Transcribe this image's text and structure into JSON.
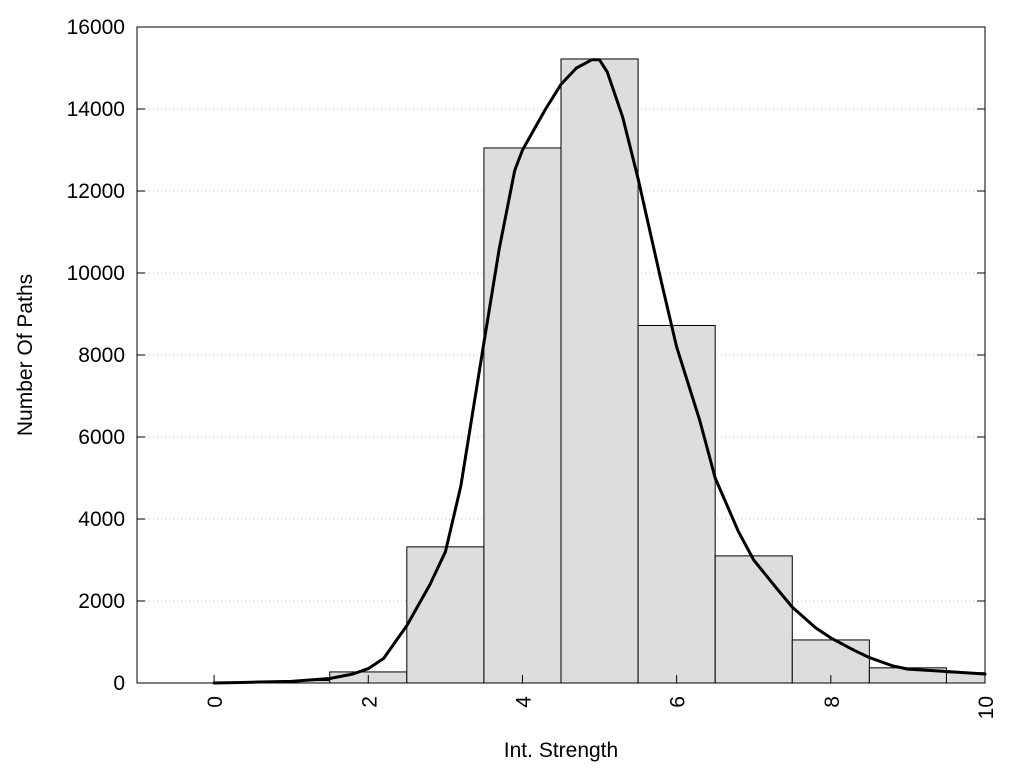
{
  "chart_data": {
    "type": "bar",
    "title": "",
    "xlabel": "Int. Strength",
    "ylabel": "Number Of Paths",
    "xlim": [
      -1,
      10
    ],
    "ylim": [
      0,
      16000
    ],
    "x_ticks": [
      0,
      2,
      4,
      6,
      8,
      10
    ],
    "x_tick_labels": [
      "0",
      "2",
      "4",
      "6",
      "8",
      "10"
    ],
    "y_ticks": [
      0,
      2000,
      4000,
      6000,
      8000,
      10000,
      12000,
      14000,
      16000
    ],
    "y_tick_labels": [
      "0",
      "2000",
      "4000",
      "6000",
      "8000",
      "10000",
      "12000",
      "14000",
      "16000"
    ],
    "grid": "horizontal-dotted",
    "bar_color": "#dddddd",
    "bar_edge_color": "#000000",
    "bars": [
      {
        "x_start": 0.0,
        "x_end": 1.0,
        "value": 20
      },
      {
        "x_start": 1.0,
        "x_end": 1.5,
        "value": 60
      },
      {
        "x_start": 1.5,
        "x_end": 2.5,
        "value": 270
      },
      {
        "x_start": 2.5,
        "x_end": 3.5,
        "value": 3320
      },
      {
        "x_start": 3.5,
        "x_end": 4.5,
        "value": 13050
      },
      {
        "x_start": 4.5,
        "x_end": 5.5,
        "value": 15220
      },
      {
        "x_start": 5.5,
        "x_end": 6.5,
        "value": 8720
      },
      {
        "x_start": 6.5,
        "x_end": 7.5,
        "value": 3100
      },
      {
        "x_start": 7.5,
        "x_end": 8.5,
        "value": 1050
      },
      {
        "x_start": 8.5,
        "x_end": 9.5,
        "value": 370
      },
      {
        "x_start": 9.5,
        "x_end": 10.0,
        "value": 250
      }
    ],
    "fit_curve": {
      "color": "#000000",
      "x": [
        0.0,
        0.5,
        1.0,
        1.5,
        1.8,
        2.0,
        2.2,
        2.5,
        2.8,
        3.0,
        3.2,
        3.5,
        3.7,
        3.9,
        4.0,
        4.3,
        4.5,
        4.7,
        4.9,
        5.0,
        5.1,
        5.3,
        5.5,
        5.8,
        6.0,
        6.3,
        6.5,
        6.8,
        7.0,
        7.3,
        7.5,
        7.8,
        8.0,
        8.3,
        8.5,
        8.8,
        9.0,
        9.5,
        10.0
      ],
      "y": [
        0,
        20,
        40,
        110,
        220,
        350,
        600,
        1400,
        2400,
        3200,
        4800,
        8300,
        10600,
        12500,
        13000,
        14000,
        14600,
        15000,
        15200,
        15200,
        14900,
        13800,
        12300,
        9800,
        8200,
        6400,
        5000,
        3700,
        3000,
        2300,
        1850,
        1350,
        1100,
        800,
        620,
        420,
        340,
        280,
        220
      ]
    }
  }
}
